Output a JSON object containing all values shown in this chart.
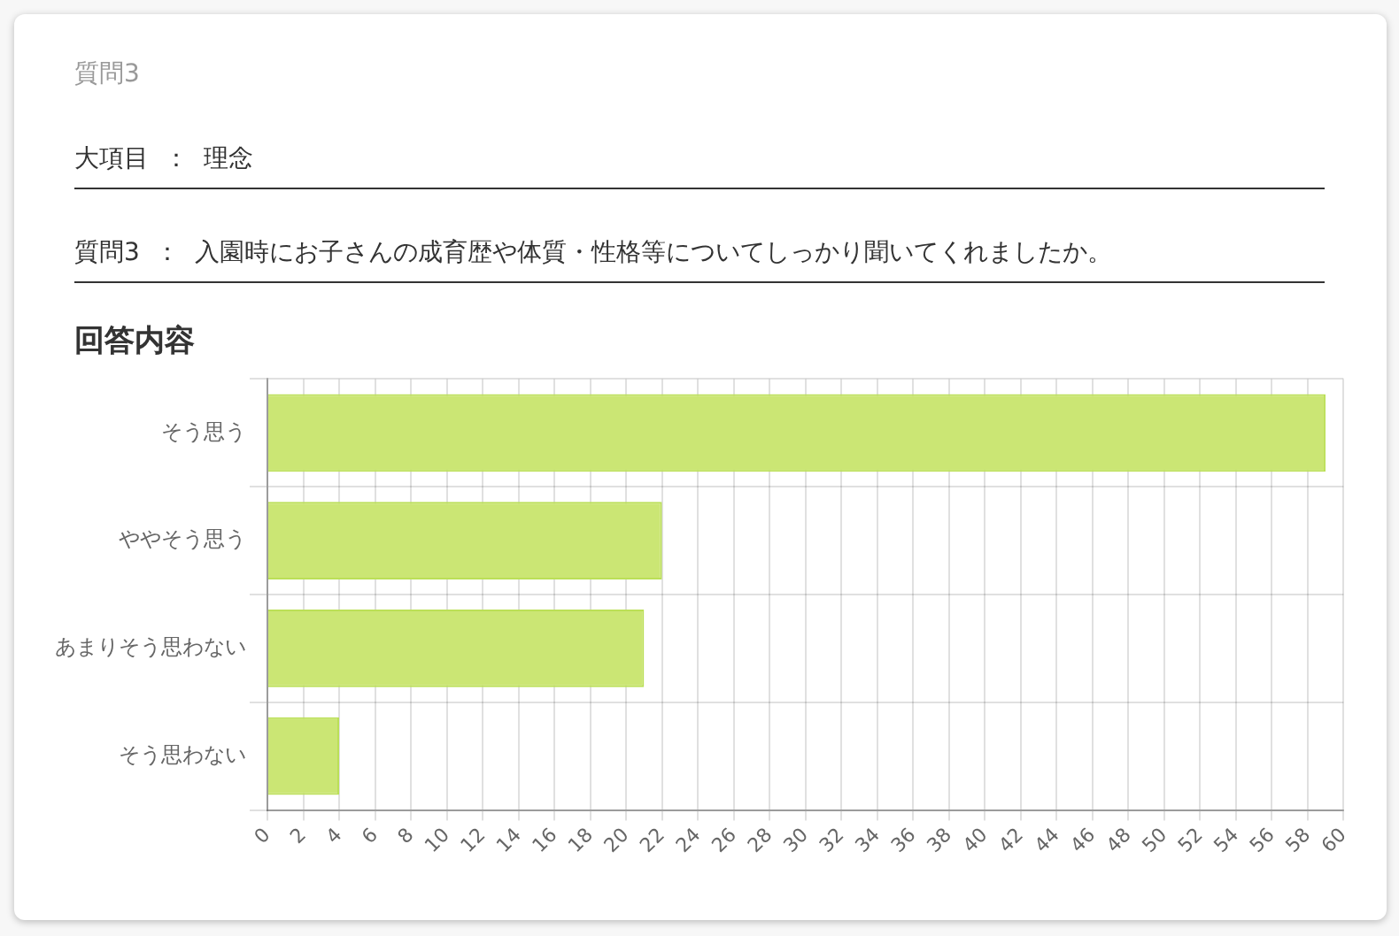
{
  "chart_data": {
    "type": "bar",
    "orientation": "horizontal",
    "title": "質問3",
    "annotations": [
      "大項目 ： 理念",
      "質問3 ： 入園時にお子さんの成育歴や体質・性格等についてしっかり聞いてくれましたか。",
      "回答内容"
    ],
    "categories": [
      "そう思う",
      "ややそう思う",
      "あまりそう思わない",
      "そう思わない"
    ],
    "values": [
      59,
      22,
      21,
      4
    ],
    "color": "#cbe674",
    "xlim": [
      0,
      60
    ],
    "xticks": [
      0,
      2,
      4,
      6,
      8,
      10,
      12,
      14,
      16,
      18,
      20,
      22,
      24,
      26,
      28,
      30,
      32,
      34,
      36,
      38,
      40,
      42,
      44,
      46,
      48,
      50,
      52,
      54,
      56,
      58,
      60
    ],
    "grid": true
  }
}
